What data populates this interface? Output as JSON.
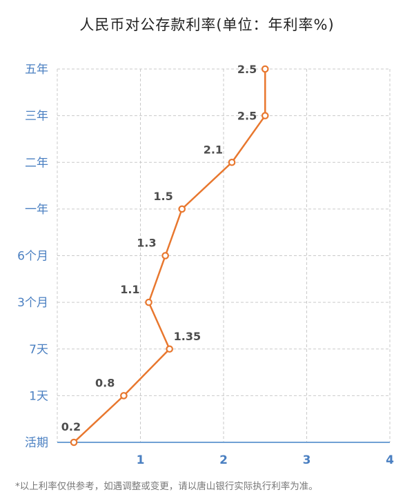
{
  "chart_data": {
    "type": "line",
    "title": "人民币对公存款利率(单位：年利率%)",
    "orientation": "horizontal",
    "categories": [
      "活期",
      "1天",
      "7天",
      "3个月",
      "6个月",
      "一年",
      "二年",
      "三年",
      "五年"
    ],
    "values": [
      0.2,
      0.8,
      1.35,
      1.1,
      1.3,
      1.5,
      2.1,
      2.5,
      2.5
    ],
    "value_labels": [
      "0.2",
      "0.8",
      "1.35",
      "1.1",
      "1.3",
      "1.5",
      "2.1",
      "2.5",
      "2.5"
    ],
    "x_ticks": [
      "1",
      "2",
      "3",
      "4"
    ],
    "xlim": [
      0,
      4
    ],
    "grid": true,
    "color": "#e8772e",
    "axis_color": "#6fa0d4",
    "note": "*以上利率仅供参考，如遇调整或变更，请以唐山银行实际执行利率为准。"
  }
}
